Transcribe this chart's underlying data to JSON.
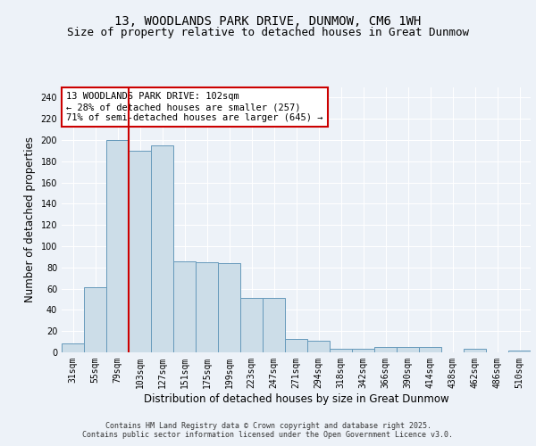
{
  "title1": "13, WOODLANDS PARK DRIVE, DUNMOW, CM6 1WH",
  "title2": "Size of property relative to detached houses in Great Dunmow",
  "xlabel": "Distribution of detached houses by size in Great Dunmow",
  "ylabel": "Number of detached properties",
  "categories": [
    "31sqm",
    "55sqm",
    "79sqm",
    "103sqm",
    "127sqm",
    "151sqm",
    "175sqm",
    "199sqm",
    "223sqm",
    "247sqm",
    "271sqm",
    "294sqm",
    "318sqm",
    "342sqm",
    "366sqm",
    "390sqm",
    "414sqm",
    "438sqm",
    "462sqm",
    "486sqm",
    "510sqm"
  ],
  "values": [
    8,
    61,
    200,
    190,
    195,
    86,
    85,
    84,
    51,
    51,
    13,
    11,
    3,
    3,
    5,
    5,
    5,
    0,
    3,
    0,
    2
  ],
  "bar_color": "#ccdde8",
  "bar_edge_color": "#6699bb",
  "red_line_x": 3.0,
  "annotation_text": "13 WOODLANDS PARK DRIVE: 102sqm\n← 28% of detached houses are smaller (257)\n71% of semi-detached houses are larger (645) →",
  "annotation_box_color": "#ffffff",
  "annotation_box_edge": "#cc0000",
  "ylim": [
    0,
    250
  ],
  "yticks": [
    0,
    20,
    40,
    60,
    80,
    100,
    120,
    140,
    160,
    180,
    200,
    220,
    240
  ],
  "footer1": "Contains HM Land Registry data © Crown copyright and database right 2025.",
  "footer2": "Contains public sector information licensed under the Open Government Licence v3.0.",
  "bg_color": "#edf2f8",
  "plot_bg_color": "#edf2f8",
  "grid_color": "#ffffff",
  "title_fontsize": 10,
  "subtitle_fontsize": 9,
  "axis_label_fontsize": 8.5,
  "tick_fontsize": 7,
  "annotation_fontsize": 7.5,
  "footer_fontsize": 6
}
